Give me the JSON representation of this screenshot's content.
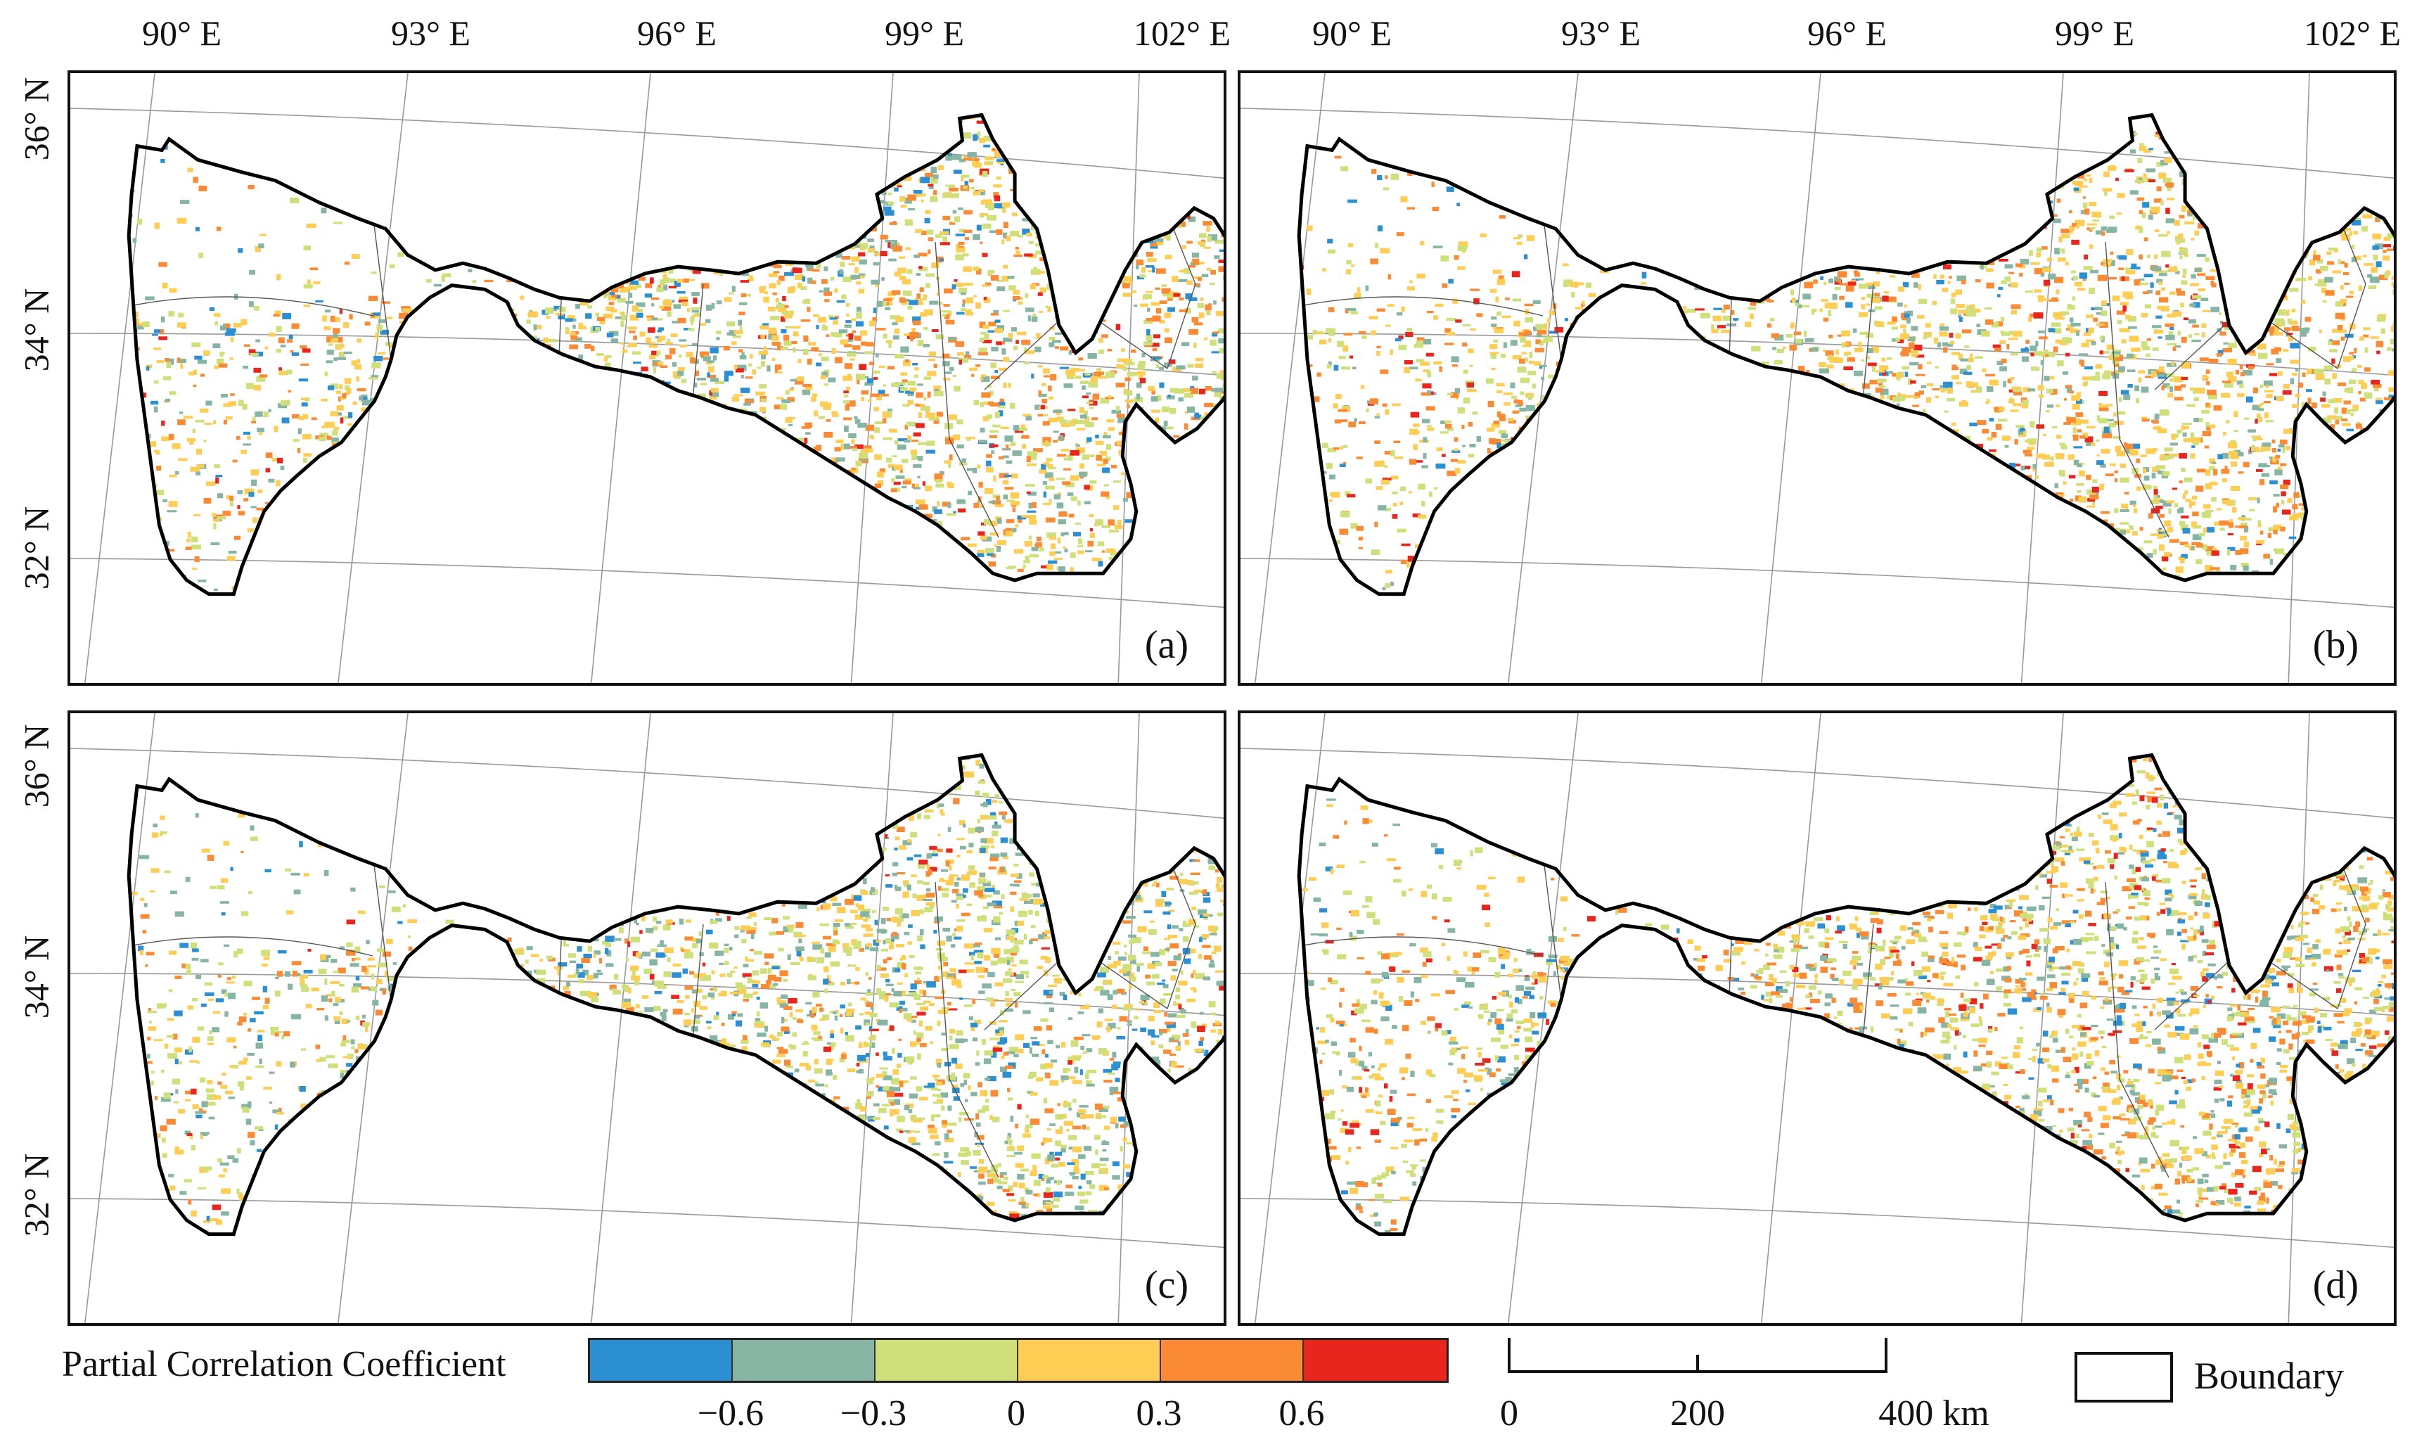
{
  "panels": [
    {
      "label": "(a)"
    },
    {
      "label": "(b)"
    },
    {
      "label": "(c)"
    },
    {
      "label": "(d)"
    }
  ],
  "lon_ticks": [
    "90° E",
    "93° E",
    "96° E",
    "99° E",
    "102° E"
  ],
  "lat_ticks": [
    "36° N",
    "34° N",
    "32° N"
  ],
  "legend": {
    "title": "Partial Correlation Coefficient",
    "colors": [
      "#2b8fd1",
      "#86b6a3",
      "#cfe07a",
      "#fecd54",
      "#fa8a33",
      "#e8261e"
    ],
    "tick_labels": [
      "−0.6",
      "−0.3",
      "0",
      "0.3",
      "0.6"
    ]
  },
  "scale_bar": {
    "labels": [
      "0",
      "200",
      "400 km"
    ]
  },
  "boundary_legend": {
    "label": "Boundary"
  }
}
